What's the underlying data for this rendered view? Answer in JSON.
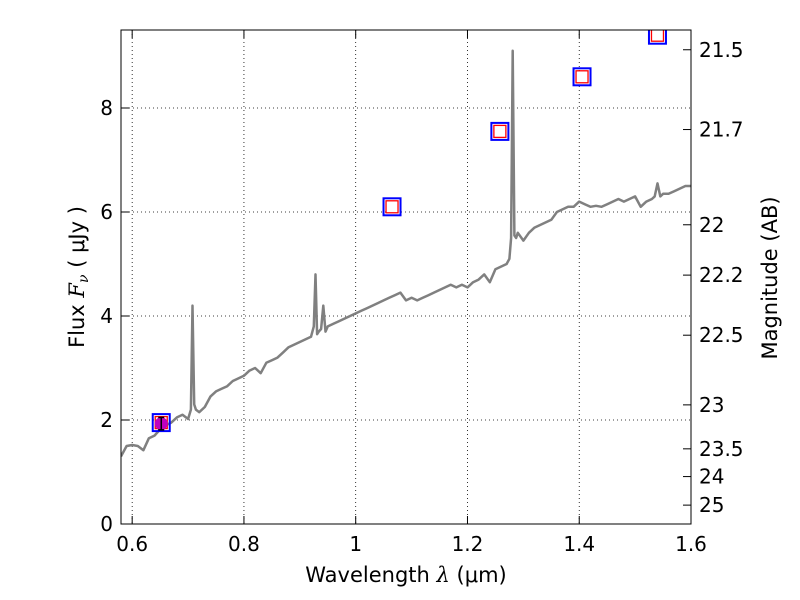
{
  "chart_data": {
    "type": "line",
    "xlabel": "Wavelength",
    "xlabel_symbol": "λ",
    "xlabel_unit": "(μm)",
    "ylabel": "Flux",
    "ylabel_symbol": "F_ν",
    "ylabel_unit": "( μJy )",
    "y2label": "Magnitude (AB)",
    "xlim": [
      0.58,
      1.6
    ],
    "ylim": [
      0,
      9.5
    ],
    "grid": true,
    "x_ticks": [
      0.6,
      0.8,
      1.0,
      1.2,
      1.4,
      1.6
    ],
    "x_tick_labels": [
      "0.6",
      "0.8",
      "1",
      "1.2",
      "1.4",
      "1.6"
    ],
    "y_ticks": [
      0,
      2,
      4,
      6,
      8
    ],
    "y_tick_labels": [
      "0",
      "2",
      "4",
      "6",
      "8"
    ],
    "y2_ticks": [
      21.5,
      21.7,
      22,
      22.2,
      22.5,
      23,
      23.5,
      24,
      25
    ],
    "y2_tick_labels": [
      "21.5",
      "21.7",
      "22",
      "22.2",
      "22.5",
      "23",
      "23.5",
      "24",
      "25"
    ],
    "series": [
      {
        "type": "line",
        "color": "#808080",
        "x": [
          0.58,
          0.59,
          0.6,
          0.61,
          0.62,
          0.63,
          0.64,
          0.65,
          0.66,
          0.67,
          0.68,
          0.69,
          0.7,
          0.705,
          0.708,
          0.711,
          0.714,
          0.72,
          0.73,
          0.74,
          0.75,
          0.76,
          0.77,
          0.78,
          0.79,
          0.8,
          0.81,
          0.82,
          0.83,
          0.84,
          0.85,
          0.86,
          0.87,
          0.88,
          0.89,
          0.9,
          0.91,
          0.92,
          0.925,
          0.928,
          0.931,
          0.934,
          0.938,
          0.942,
          0.946,
          0.95,
          0.96,
          0.97,
          0.98,
          0.99,
          1.0,
          1.01,
          1.02,
          1.03,
          1.04,
          1.05,
          1.06,
          1.07,
          1.08,
          1.09,
          1.1,
          1.11,
          1.12,
          1.13,
          1.14,
          1.15,
          1.16,
          1.17,
          1.18,
          1.19,
          1.2,
          1.21,
          1.22,
          1.23,
          1.24,
          1.25,
          1.26,
          1.27,
          1.275,
          1.278,
          1.281,
          1.284,
          1.287,
          1.29,
          1.3,
          1.31,
          1.32,
          1.33,
          1.34,
          1.35,
          1.36,
          1.37,
          1.38,
          1.39,
          1.4,
          1.41,
          1.42,
          1.43,
          1.44,
          1.45,
          1.46,
          1.47,
          1.48,
          1.49,
          1.5,
          1.51,
          1.52,
          1.53,
          1.535,
          1.54,
          1.545,
          1.55,
          1.56,
          1.57,
          1.58,
          1.59,
          1.6
        ],
        "y": [
          1.3,
          1.5,
          1.52,
          1.5,
          1.42,
          1.65,
          1.7,
          1.82,
          1.9,
          1.95,
          2.05,
          2.1,
          2.02,
          2.2,
          4.2,
          2.3,
          2.2,
          2.15,
          2.25,
          2.45,
          2.55,
          2.6,
          2.65,
          2.75,
          2.8,
          2.85,
          2.95,
          3.0,
          2.9,
          3.1,
          3.15,
          3.2,
          3.3,
          3.4,
          3.45,
          3.5,
          3.55,
          3.6,
          3.8,
          4.8,
          3.65,
          3.7,
          3.75,
          4.2,
          3.7,
          3.8,
          3.85,
          3.9,
          3.95,
          4.0,
          4.05,
          4.1,
          4.15,
          4.2,
          4.25,
          4.3,
          4.35,
          4.4,
          4.45,
          4.3,
          4.35,
          4.3,
          4.35,
          4.4,
          4.45,
          4.5,
          4.55,
          4.6,
          4.55,
          4.6,
          4.55,
          4.65,
          4.7,
          4.8,
          4.65,
          4.9,
          4.95,
          5.0,
          5.1,
          5.5,
          9.1,
          5.55,
          5.5,
          5.6,
          5.45,
          5.6,
          5.7,
          5.75,
          5.8,
          5.85,
          6.0,
          6.05,
          6.1,
          6.1,
          6.2,
          6.15,
          6.1,
          6.12,
          6.1,
          6.15,
          6.2,
          6.25,
          6.2,
          6.25,
          6.3,
          6.1,
          6.2,
          6.25,
          6.3,
          6.55,
          6.3,
          6.35,
          6.35,
          6.4,
          6.45,
          6.5,
          6.5
        ]
      },
      {
        "type": "scatter",
        "marker": "square",
        "edge_color": "#0000ff",
        "x": [
          0.652,
          1.065,
          1.258,
          1.405,
          1.54
        ],
        "y": [
          1.95,
          6.1,
          7.55,
          8.6,
          9.4
        ]
      },
      {
        "type": "scatter",
        "marker": "square",
        "edge_color": "#ff0000",
        "x": [
          0.652,
          1.065,
          1.258,
          1.405,
          1.54
        ],
        "y": [
          1.95,
          6.1,
          7.55,
          8.6,
          9.4
        ]
      },
      {
        "type": "errorbar",
        "marker": "circle",
        "color": "#bf00bf",
        "x": [
          0.652
        ],
        "y": [
          1.93
        ],
        "yerr": [
          0.12
        ]
      }
    ]
  }
}
